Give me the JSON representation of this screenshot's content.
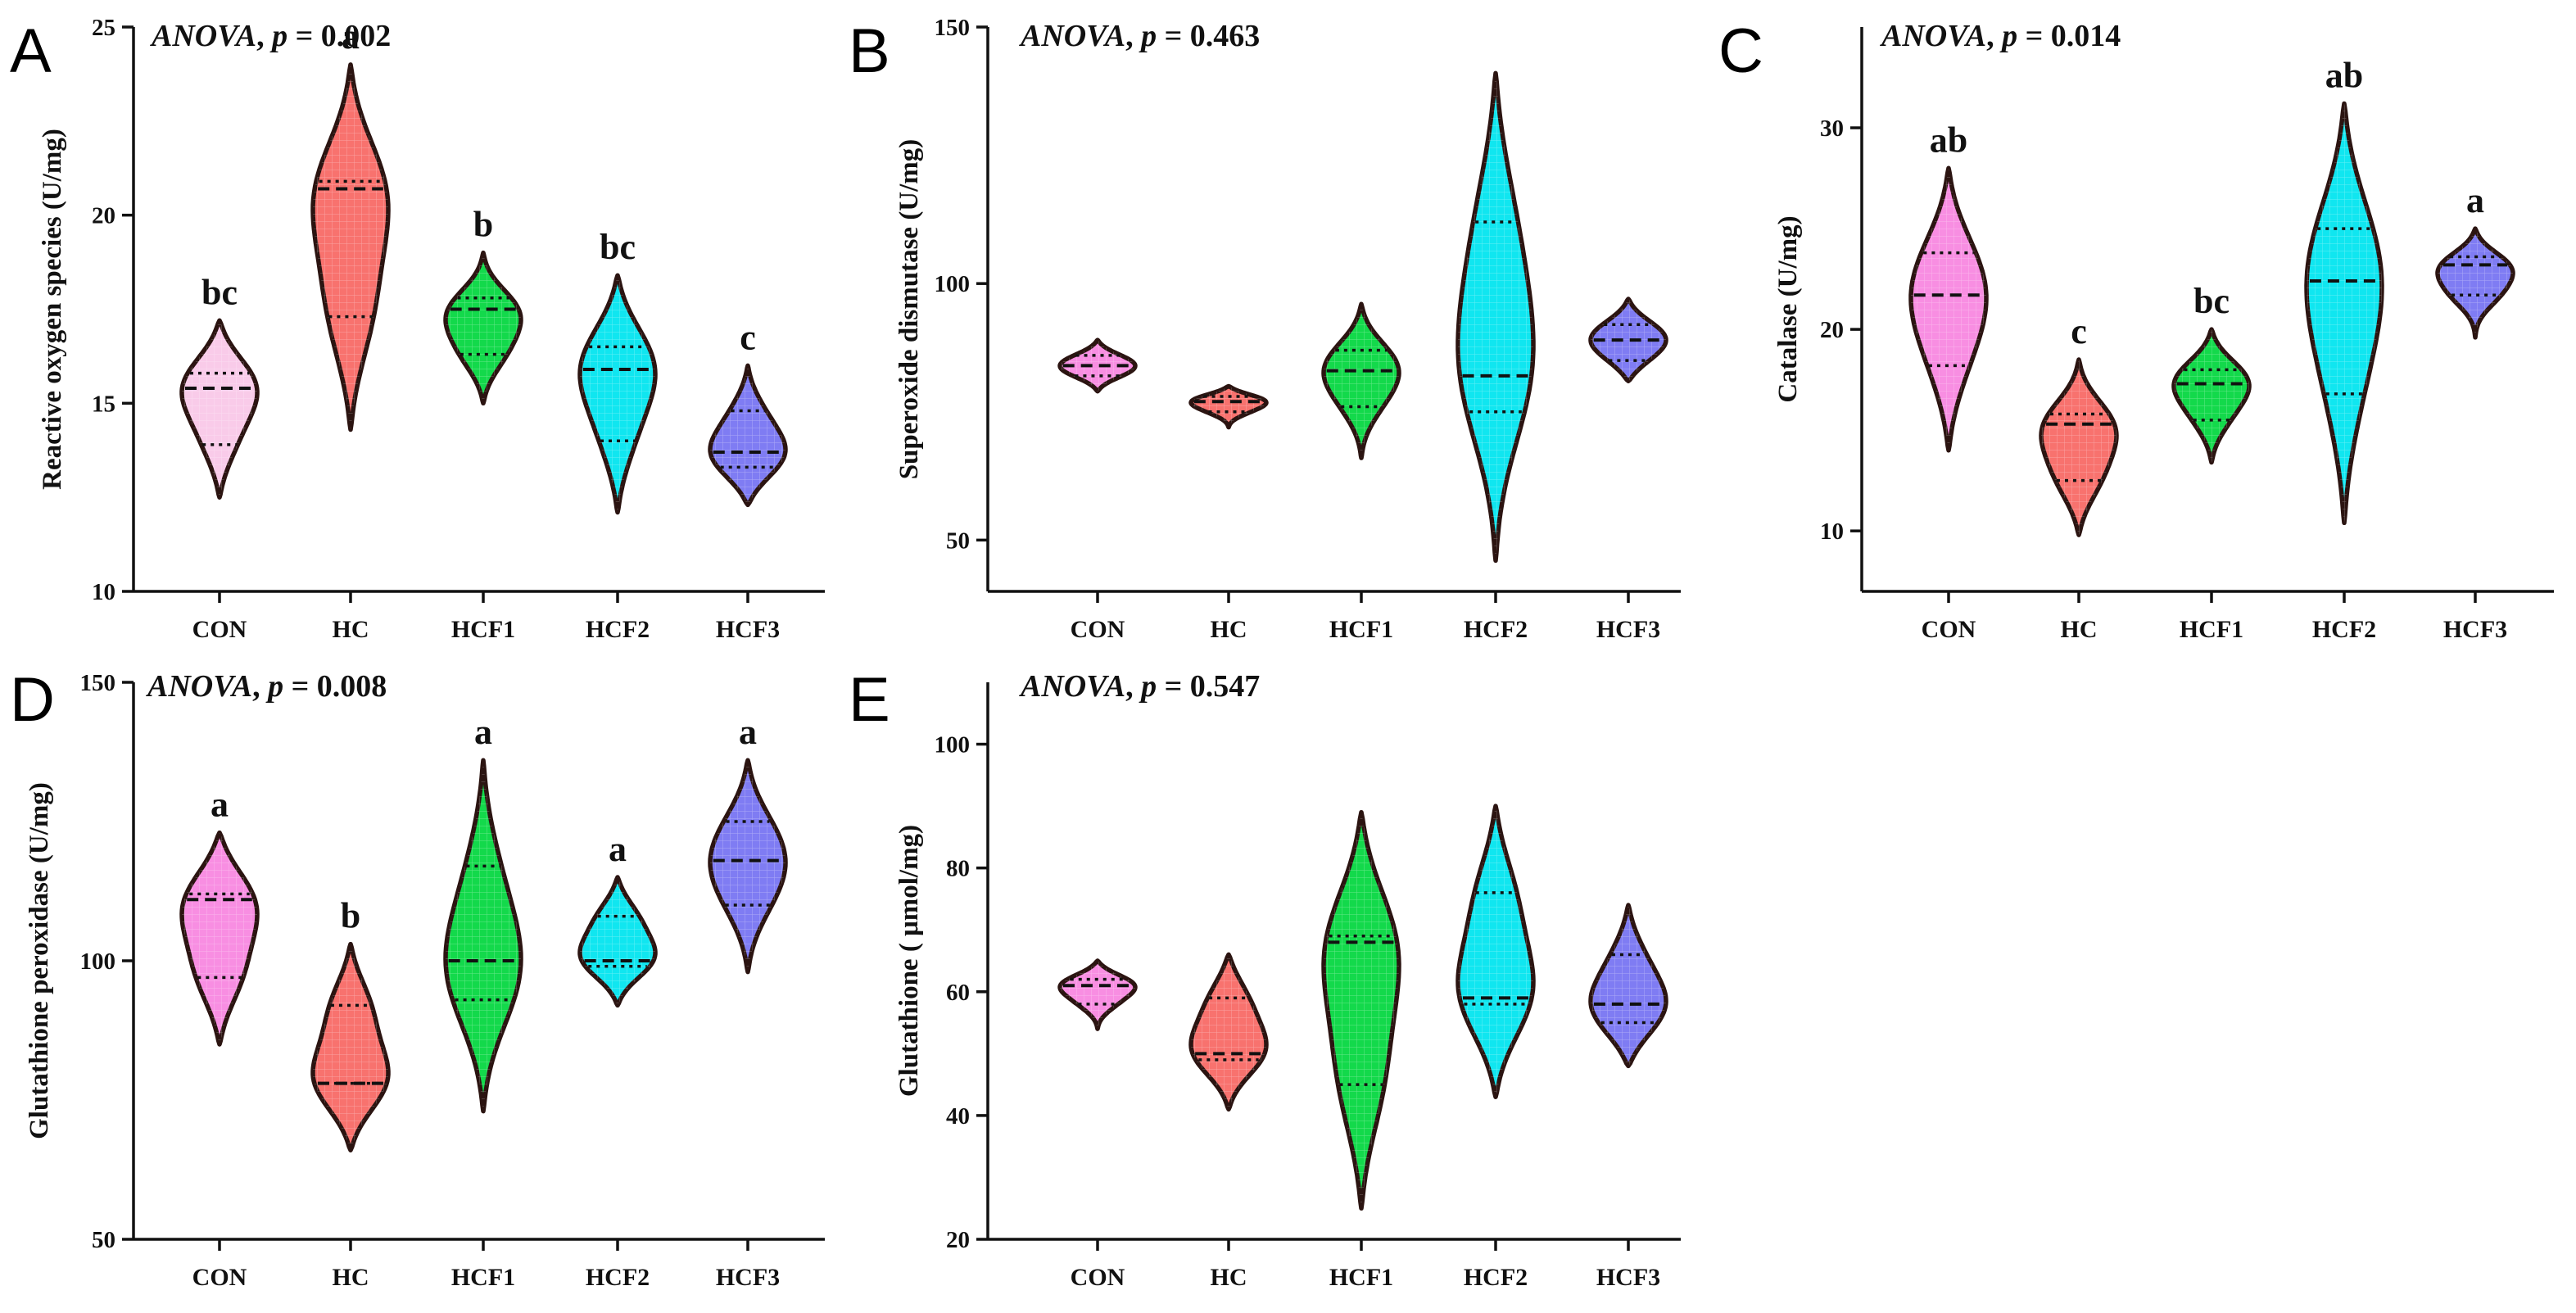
{
  "chart_data": [
    {
      "id": "A",
      "type": "violin",
      "panel_label": "A",
      "stat_prefix": "ANOVA",
      "stat_suffix": ", p = 0.002",
      "ylabel": "Reactive oxygen species (U/mg)",
      "ylim": [
        10,
        25
      ],
      "yticks": [
        10,
        15,
        20,
        25
      ],
      "categories": [
        "CON",
        "HC",
        "HCF1",
        "HCF2",
        "HCF3"
      ],
      "colors": [
        "#f9cbe9",
        "#f8726e",
        "#13d94b",
        "#10e6f0",
        "#7f7cf3"
      ],
      "series": [
        {
          "name": "CON",
          "range": [
            12.5,
            17.2
          ],
          "q1": 13.9,
          "median": 15.4,
          "q3": 15.8,
          "letter": "bc"
        },
        {
          "name": "HC",
          "range": [
            14.3,
            24.0
          ],
          "q1": 17.3,
          "median": 20.7,
          "q3": 20.9,
          "letter": "a"
        },
        {
          "name": "HCF1",
          "range": [
            15.0,
            19.0
          ],
          "q1": 16.3,
          "median": 17.5,
          "q3": 17.8,
          "letter": "b"
        },
        {
          "name": "HCF2",
          "range": [
            12.1,
            18.4
          ],
          "q1": 14.0,
          "median": 15.9,
          "q3": 16.5,
          "letter": "bc"
        },
        {
          "name": "HCF3",
          "range": [
            12.3,
            16.0
          ],
          "q1": 13.3,
          "median": 13.7,
          "q3": 14.8,
          "letter": "c"
        }
      ]
    },
    {
      "id": "B",
      "type": "violin",
      "panel_label": "B",
      "stat_prefix": "ANOVA",
      "stat_suffix": ", p = 0.463",
      "ylabel": "Superoxide dismutase (U/mg)",
      "ylim": [
        40,
        150
      ],
      "yticks": [
        50,
        100,
        150
      ],
      "categories": [
        "CON",
        "HC",
        "HCF1",
        "HCF2",
        "HCF3"
      ],
      "colors": [
        "#f88ee2",
        "#f8726e",
        "#13d94b",
        "#10e6f0",
        "#7f7cf3"
      ],
      "series": [
        {
          "name": "CON",
          "range": [
            79,
            89
          ],
          "q1": 82,
          "median": 84,
          "q3": 86,
          "letter": ""
        },
        {
          "name": "HC",
          "range": [
            72,
            80
          ],
          "q1": 75,
          "median": 77,
          "q3": 78,
          "letter": ""
        },
        {
          "name": "HCF1",
          "range": [
            66,
            96
          ],
          "q1": 76,
          "median": 83,
          "q3": 87,
          "letter": ""
        },
        {
          "name": "HCF2",
          "range": [
            46,
            141
          ],
          "q1": 75,
          "median": 82,
          "q3": 112,
          "letter": ""
        },
        {
          "name": "HCF3",
          "range": [
            81,
            97
          ],
          "q1": 85,
          "median": 89,
          "q3": 92,
          "letter": ""
        }
      ]
    },
    {
      "id": "C",
      "type": "violin",
      "panel_label": "C",
      "stat_prefix": "ANOVA",
      "stat_suffix": ", p = 0.014",
      "ylabel": "Catalase (U/mg)",
      "ylim": [
        7,
        35
      ],
      "yticks": [
        10,
        20,
        30
      ],
      "categories": [
        "CON",
        "HC",
        "HCF1",
        "HCF2",
        "HCF3"
      ],
      "colors": [
        "#f88ee2",
        "#f8726e",
        "#13d94b",
        "#10e6f0",
        "#7f7cf3"
      ],
      "series": [
        {
          "name": "CON",
          "range": [
            14.0,
            28.0
          ],
          "q1": 18.2,
          "median": 21.7,
          "q3": 23.8,
          "letter": "ab"
        },
        {
          "name": "HC",
          "range": [
            9.8,
            18.5
          ],
          "q1": 12.5,
          "median": 15.3,
          "q3": 15.8,
          "letter": "c"
        },
        {
          "name": "HCF1",
          "range": [
            13.4,
            20.0
          ],
          "q1": 15.5,
          "median": 17.3,
          "q3": 18.0,
          "letter": "bc"
        },
        {
          "name": "HCF2",
          "range": [
            10.4,
            31.2
          ],
          "q1": 16.8,
          "median": 22.4,
          "q3": 25.0,
          "letter": "ab"
        },
        {
          "name": "HCF3",
          "range": [
            19.6,
            25.0
          ],
          "q1": 21.7,
          "median": 23.2,
          "q3": 23.6,
          "letter": "a"
        }
      ]
    },
    {
      "id": "D",
      "type": "violin",
      "panel_label": "D",
      "stat_prefix": "ANOVA",
      "stat_suffix": ", p = 0.008",
      "ylabel": "Glutathione peroxidase (U/mg)",
      "ylim": [
        50,
        150
      ],
      "yticks": [
        50,
        100,
        150
      ],
      "categories": [
        "CON",
        "HC",
        "HCF1",
        "HCF2",
        "HCF3"
      ],
      "colors": [
        "#f88ee2",
        "#f8726e",
        "#13d94b",
        "#10e6f0",
        "#7f7cf3"
      ],
      "series": [
        {
          "name": "CON",
          "range": [
            85,
            123
          ],
          "q1": 97,
          "median": 111,
          "q3": 112,
          "letter": "a"
        },
        {
          "name": "HC",
          "range": [
            66,
            103
          ],
          "q1": 78,
          "median": 78,
          "q3": 92,
          "letter": "b"
        },
        {
          "name": "HCF1",
          "range": [
            73,
            136
          ],
          "q1": 93,
          "median": 100,
          "q3": 117,
          "letter": "a"
        },
        {
          "name": "HCF2",
          "range": [
            92,
            115
          ],
          "q1": 99,
          "median": 100,
          "q3": 108,
          "letter": "a"
        },
        {
          "name": "HCF3",
          "range": [
            98,
            136
          ],
          "q1": 110,
          "median": 118,
          "q3": 125,
          "letter": "a"
        }
      ]
    },
    {
      "id": "E",
      "type": "violin",
      "panel_label": "E",
      "stat_prefix": "ANOVA",
      "stat_suffix": ", p = 0.547",
      "ylabel": "Glutathione ( μmol/mg)",
      "ylim": [
        20,
        110
      ],
      "yticks": [
        20,
        40,
        60,
        80,
        100
      ],
      "categories": [
        "CON",
        "HC",
        "HCF1",
        "HCF2",
        "HCF3"
      ],
      "colors": [
        "#f88ee2",
        "#f8726e",
        "#13d94b",
        "#10e6f0",
        "#7f7cf3"
      ],
      "series": [
        {
          "name": "CON",
          "range": [
            54,
            65
          ],
          "q1": 58,
          "median": 61,
          "q3": 62,
          "letter": ""
        },
        {
          "name": "HC",
          "range": [
            41,
            66
          ],
          "q1": 49,
          "median": 50,
          "q3": 59,
          "letter": ""
        },
        {
          "name": "HCF1",
          "range": [
            25,
            89
          ],
          "q1": 45,
          "median": 68,
          "q3": 69,
          "letter": ""
        },
        {
          "name": "HCF2",
          "range": [
            43,
            90
          ],
          "q1": 58,
          "median": 59,
          "q3": 76,
          "letter": ""
        },
        {
          "name": "HCF3",
          "range": [
            48,
            74
          ],
          "q1": 55,
          "median": 58,
          "q3": 66,
          "letter": ""
        }
      ]
    }
  ]
}
